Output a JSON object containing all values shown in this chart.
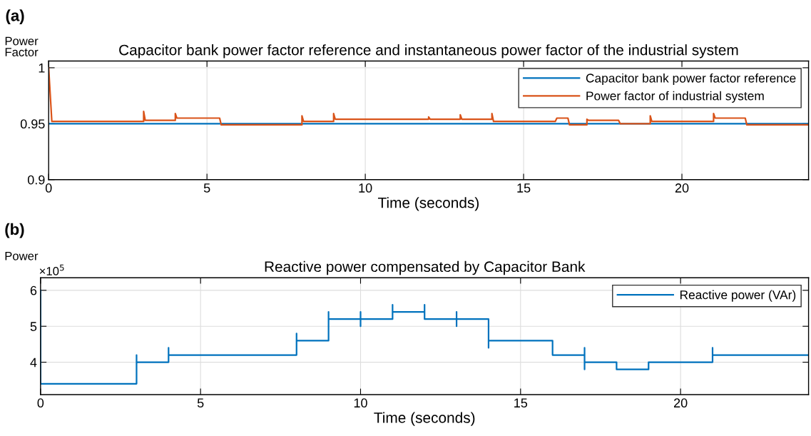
{
  "chart_data": [
    {
      "type": "line",
      "title": "Capacitor bank power factor reference and instantaneous power factor of the industrial system",
      "xlabel": "Time (seconds)",
      "ylabel": "Power\nFactor",
      "annotations": [
        "(a)"
      ],
      "xlim": [
        0,
        24
      ],
      "xticks": [
        0,
        5,
        10,
        15,
        20
      ],
      "ylim": [
        0.9,
        1.006
      ],
      "yticks": [
        0.9,
        0.95,
        1
      ],
      "grid": true,
      "legend": "top right",
      "line_style": "solid",
      "series": [
        {
          "name": "Capacitor bank power factor reference",
          "color": "#0072bd",
          "x": [
            0,
            24
          ],
          "values": [
            0.95,
            0.95
          ]
        },
        {
          "name": "Power factor of industrial system",
          "color": "#d95319",
          "x": [
            0,
            0.1,
            3,
            3,
            3.05,
            4,
            4,
            4.05,
            5.4,
            5.45,
            8,
            8,
            8.05,
            9,
            9,
            9.05,
            12,
            12,
            12.05,
            13,
            13,
            13.05,
            14,
            14,
            14.05,
            16,
            16.05,
            16.4,
            16.45,
            17,
            17,
            17.05,
            18,
            18.05,
            19,
            19,
            19.05,
            21,
            21,
            21.05,
            22,
            22.05,
            24
          ],
          "values": [
            1.0,
            0.952,
            0.952,
            0.961,
            0.953,
            0.953,
            0.959,
            0.955,
            0.955,
            0.949,
            0.949,
            0.957,
            0.952,
            0.952,
            0.959,
            0.954,
            0.954,
            0.956,
            0.954,
            0.954,
            0.958,
            0.954,
            0.954,
            0.959,
            0.952,
            0.952,
            0.955,
            0.955,
            0.949,
            0.949,
            0.954,
            0.953,
            0.953,
            0.95,
            0.95,
            0.957,
            0.952,
            0.952,
            0.959,
            0.955,
            0.955,
            0.949,
            0.949
          ]
        }
      ]
    },
    {
      "type": "line",
      "title": "Reactive power compensated by Capacitor Bank",
      "xlabel": "Time (seconds)",
      "ylabel": "Power",
      "annotations": [
        "(b)",
        "×10$^{5}$"
      ],
      "xlim": [
        0,
        24
      ],
      "xticks": [
        0,
        5,
        10,
        15,
        20
      ],
      "ylim": [
        3.1,
        6.35
      ],
      "yticks": [
        4,
        5,
        6
      ],
      "grid": true,
      "legend": "top right",
      "line_style": "solid",
      "series": [
        {
          "name": "Reactive power (VAr)",
          "color": "#0072bd",
          "x": [
            0,
            0,
            3,
            3,
            3,
            4,
            4,
            4,
            8,
            8,
            8,
            9,
            9,
            9,
            10,
            10,
            10,
            10,
            11,
            11,
            11,
            12,
            12,
            12,
            13,
            13,
            13,
            13,
            14,
            14,
            14,
            16,
            16,
            17,
            17,
            17,
            17,
            18,
            18,
            19,
            19,
            21,
            21,
            21,
            24
          ],
          "values": [
            6.0,
            3.4,
            3.4,
            4.2,
            4.0,
            4.0,
            4.4,
            4.2,
            4.2,
            4.8,
            4.6,
            4.6,
            5.4,
            5.2,
            5.2,
            5.4,
            5.0,
            5.2,
            5.2,
            5.6,
            5.4,
            5.4,
            5.6,
            5.2,
            5.2,
            5.4,
            5.0,
            5.2,
            5.2,
            4.4,
            4.6,
            4.6,
            4.2,
            4.2,
            4.4,
            3.8,
            4.0,
            4.0,
            3.8,
            3.8,
            4.0,
            4.0,
            4.4,
            4.2,
            4.2
          ]
        }
      ]
    }
  ]
}
